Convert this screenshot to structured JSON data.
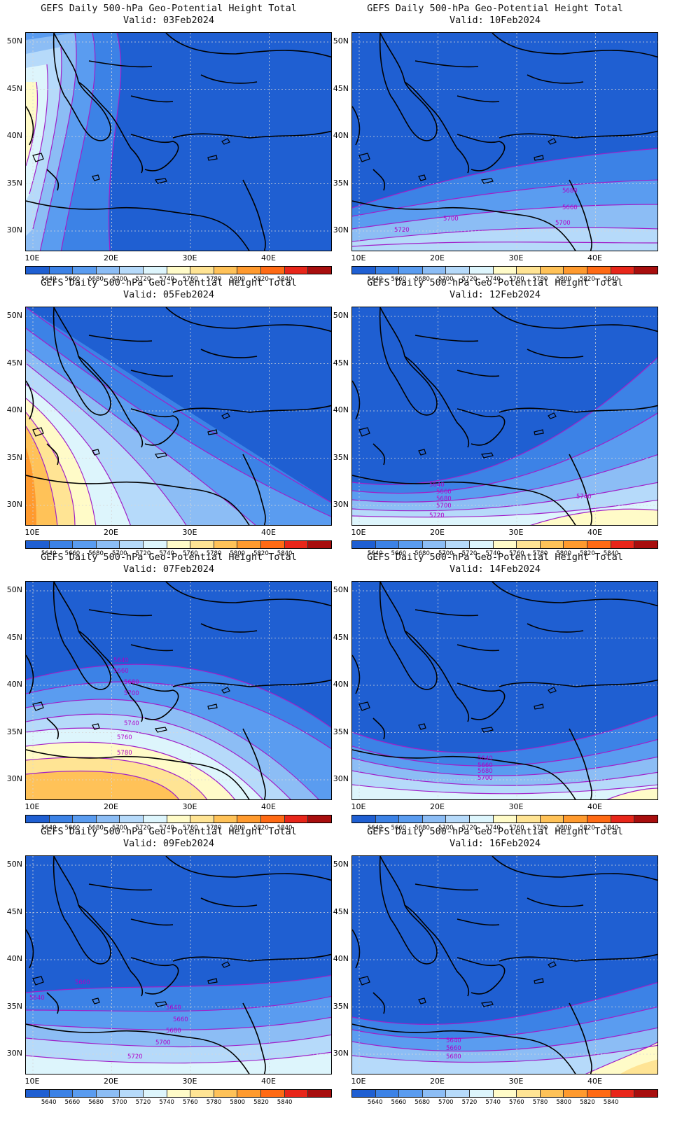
{
  "title_line1": "GEFS Daily 500-hPa Geo-Potential Height Total",
  "valid_prefix": "Valid: ",
  "lat_labels": [
    "50N",
    "45N",
    "40N",
    "35N",
    "30N"
  ],
  "lon_labels": [
    "10E",
    "20E",
    "30E",
    "40E"
  ],
  "colorbar": {
    "labels": [
      "5640",
      "5660",
      "5680",
      "5700",
      "5720",
      "5740",
      "5760",
      "5780",
      "5800",
      "5820",
      "5840"
    ],
    "colors": [
      "#1f5fd2",
      "#3c82e6",
      "#5a9cf0",
      "#8cbdf5",
      "#b6dafa",
      "#ddf5fc",
      "#fffbc8",
      "#ffe494",
      "#ffc258",
      "#ff9a2e",
      "#ff6a14",
      "#e8261a",
      "#a80e0e"
    ]
  },
  "panels": [
    {
      "id": "p03",
      "valid": "03Feb2024",
      "col": 0,
      "row": 0,
      "labels": []
    },
    {
      "id": "p10",
      "valid": "10Feb2024",
      "col": 1,
      "row": 0,
      "labels": [
        "5680",
        "5660",
        "5700",
        "5720",
        "5700"
      ]
    },
    {
      "id": "p05",
      "valid": "05Feb2024",
      "col": 0,
      "row": 1,
      "labels": []
    },
    {
      "id": "p12",
      "valid": "12Feb2024",
      "col": 1,
      "row": 1,
      "labels": [
        "5640",
        "5660",
        "5680",
        "5700",
        "5720",
        "5740"
      ]
    },
    {
      "id": "p07",
      "valid": "07Feb2024",
      "col": 0,
      "row": 2,
      "labels": [
        "5640",
        "5660",
        "5680",
        "5700",
        "5740",
        "5760",
        "5780"
      ]
    },
    {
      "id": "p14",
      "valid": "14Feb2024",
      "col": 1,
      "row": 2,
      "labels": [
        "5640",
        "5660",
        "5680",
        "5700"
      ]
    },
    {
      "id": "p09",
      "valid": "09Feb2024",
      "col": 0,
      "row": 3,
      "labels": [
        "5660",
        "5640",
        "5640",
        "5660",
        "5680",
        "5700",
        "5720"
      ]
    },
    {
      "id": "p16",
      "valid": "16Feb2024",
      "col": 1,
      "row": 3,
      "labels": [
        "5640",
        "5660",
        "5680"
      ]
    }
  ]
}
